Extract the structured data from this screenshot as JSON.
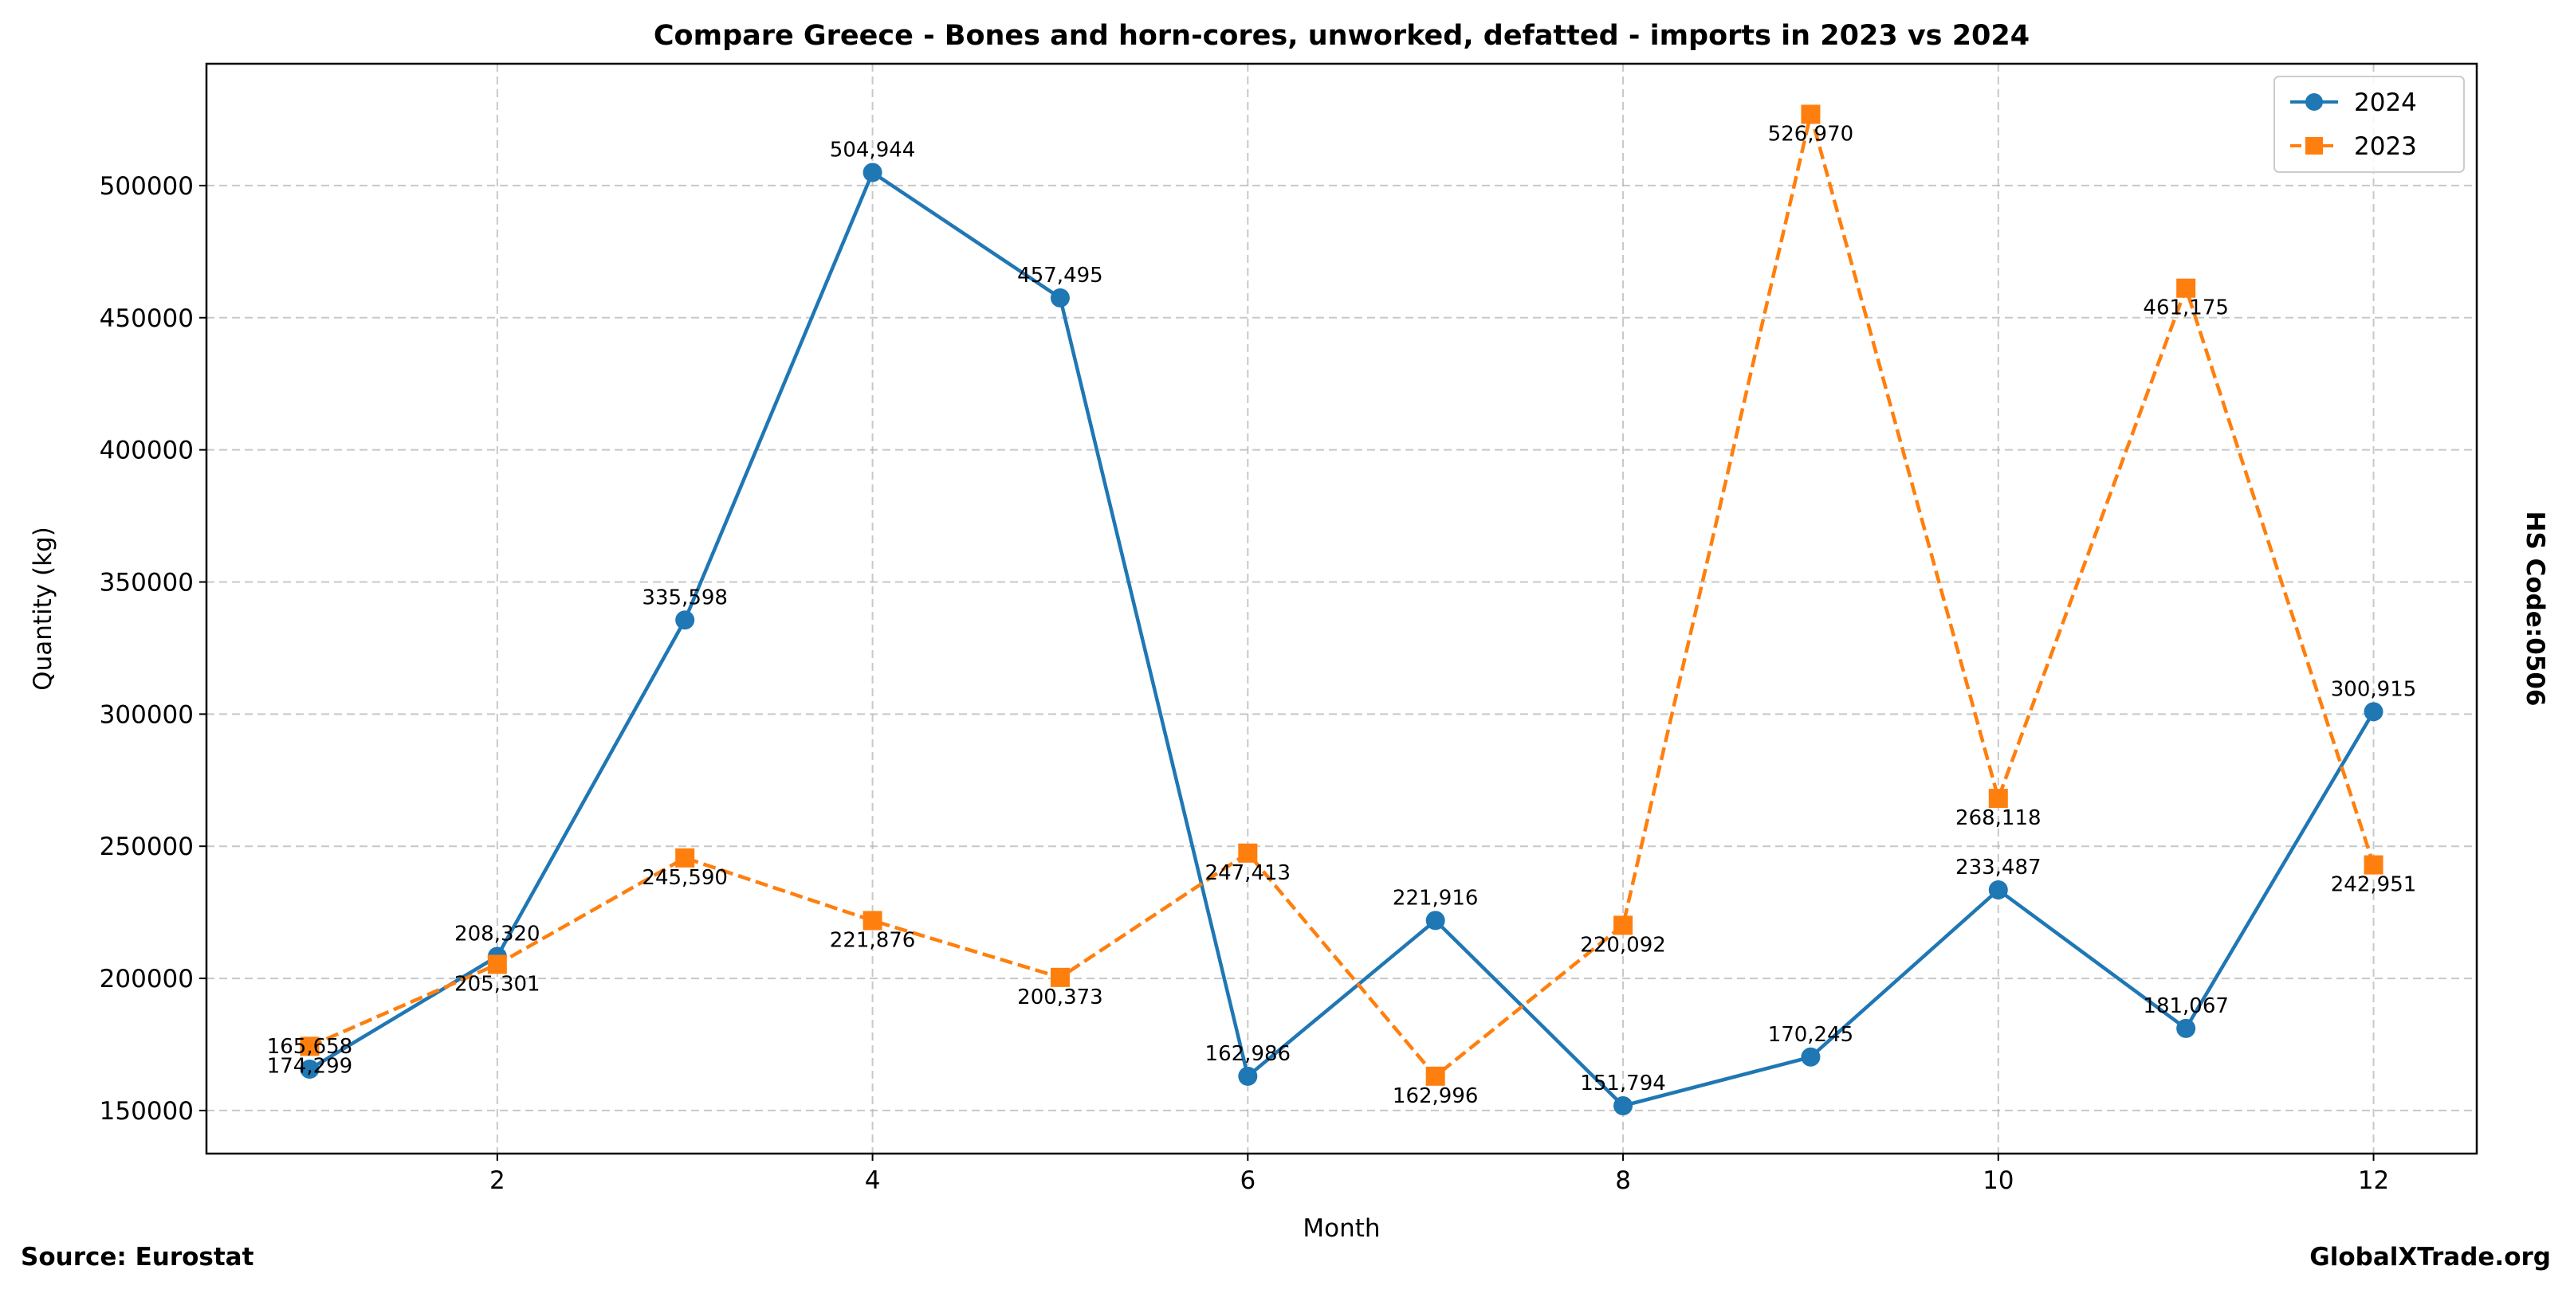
{
  "chart_data": {
    "type": "line",
    "title": "Compare Greece - Bones and horn-cores, unworked, defatted - imports in 2023 vs 2024",
    "xlabel": "Month",
    "ylabel": "Quantity (kg)",
    "right_label": "HS Code:0506",
    "source": "Source: Eurostat",
    "brand": "GlobalXTrade.org",
    "x": [
      1,
      2,
      3,
      4,
      5,
      6,
      7,
      8,
      9,
      10,
      11,
      12
    ],
    "xlim": [
      0.45,
      12.55
    ],
    "ylim": [
      133700,
      546100
    ],
    "xticks": [
      2,
      4,
      6,
      8,
      10,
      12
    ],
    "yticks": [
      150000,
      200000,
      250000,
      300000,
      350000,
      400000,
      450000,
      500000
    ],
    "grid": true,
    "legend_position": "top-right",
    "series": [
      {
        "name": "2024",
        "color": "#1f77b4",
        "marker": "circle",
        "style": "solid",
        "values": [
          165658,
          208320,
          335598,
          504944,
          457495,
          162986,
          221916,
          151794,
          170245,
          233487,
          181067,
          300915
        ],
        "labels": [
          "165,658",
          "208,320",
          "335,598",
          "504,944",
          "457,495",
          "162,986",
          "221,916",
          "151,794",
          "170,245",
          "233,487",
          "181,067",
          "300,915"
        ]
      },
      {
        "name": "2023",
        "color": "#ff7f0e",
        "marker": "square",
        "style": "dashed",
        "values": [
          174299,
          205301,
          245590,
          221876,
          200373,
          247413,
          162996,
          220092,
          526970,
          268118,
          461175,
          242951
        ],
        "labels": [
          "174,299",
          "205,301",
          "245,590",
          "221,876",
          "200,373",
          "247,413",
          "162,996",
          "220,092",
          "526,970",
          "268,118",
          "461,175",
          "242,951"
        ]
      }
    ]
  }
}
